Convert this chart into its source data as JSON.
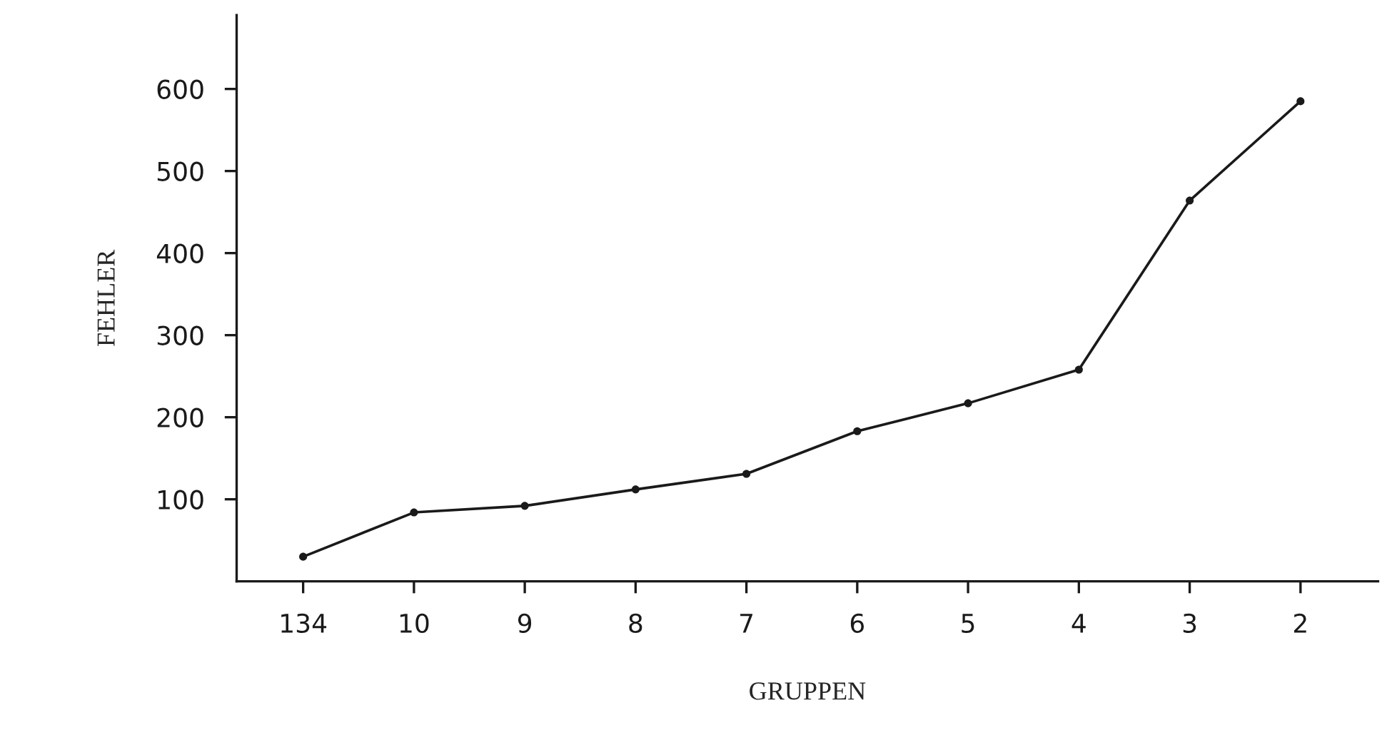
{
  "chart_data": {
    "type": "line",
    "xlabel": "GRUPPEN",
    "ylabel": "FEHLER",
    "categories": [
      "134",
      "10",
      "9",
      "8",
      "7",
      "6",
      "5",
      "4",
      "3",
      "2"
    ],
    "values": [
      30,
      84,
      92,
      112,
      131,
      183,
      217,
      258,
      464,
      585
    ],
    "color": "#1a1a1a",
    "marker": "circle",
    "line_style": "solid",
    "ylim": [
      0,
      690
    ],
    "yticks": [
      100,
      200,
      300,
      400,
      500,
      600
    ],
    "grid": false,
    "legend": false
  }
}
